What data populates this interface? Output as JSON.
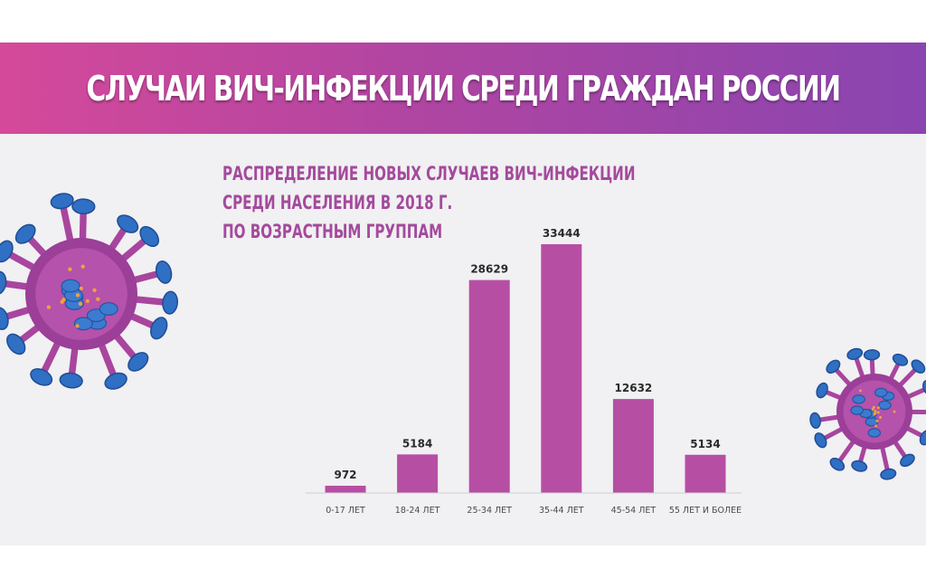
{
  "header": {
    "title": "СЛУЧАИ ВИЧ-ИНФЕКЦИИ СРЕДИ ГРАЖДАН РОССИИ"
  },
  "colors": {
    "banner_start": "#d5499a",
    "banner_end": "#8a45b0",
    "bar": "#b64fa4",
    "subtitle": "#a44a9d"
  },
  "chart_data": {
    "type": "bar",
    "title_lines": [
      "РАСПРЕДЕЛЕНИЕ НОВЫХ СЛУЧАЕВ ВИЧ-ИНФЕКЦИИ",
      "СРЕДИ НАСЕЛЕНИЯ В 2018 Г.",
      "ПО ВОЗРАСТНЫМ ГРУППАМ"
    ],
    "categories": [
      "0-17 ЛЕТ",
      "18-24 ЛЕТ",
      "25-34 ЛЕТ",
      "35-44 ЛЕТ",
      "45-54 ЛЕТ",
      "55 ЛЕТ И БОЛЕЕ"
    ],
    "values": [
      972,
      5184,
      28629,
      33444,
      12632,
      5134
    ],
    "data_labels": [
      "972",
      "5184",
      "28629",
      "33444",
      "12632",
      "5134"
    ],
    "ylim": [
      0,
      33444
    ],
    "grid": false,
    "legend": "none"
  },
  "decorations": {
    "left_icon": "virus-icon",
    "right_icon": "virus-icon"
  }
}
